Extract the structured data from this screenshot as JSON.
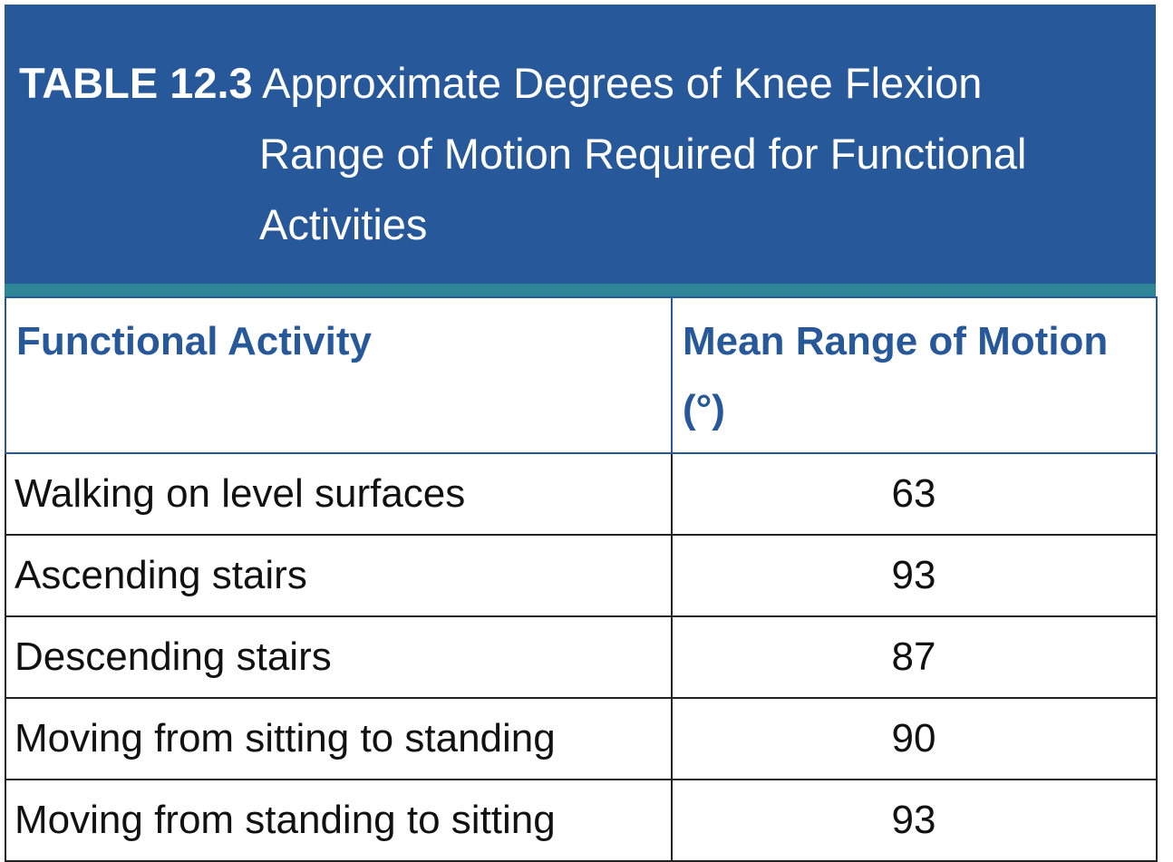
{
  "caption": {
    "label": "TABLE 12.3",
    "title_line1": "Approximate Degrees of Knee Flexion",
    "title_rest": "Range of Motion Required for Functional Activities"
  },
  "headers": {
    "activity": "Functional Activity",
    "range": "Mean Range of Motion (°)"
  },
  "rows": [
    {
      "activity": "Walking on level surfaces",
      "value": "63"
    },
    {
      "activity": "Ascending stairs",
      "value": "93"
    },
    {
      "activity": "Descending stairs",
      "value": "87"
    },
    {
      "activity": "Moving from sitting to standing",
      "value": "90"
    },
    {
      "activity": "Moving from standing to sitting",
      "value": "93"
    }
  ],
  "colors": {
    "caption_bg": "#27589a",
    "accent_bar": "#2d8595",
    "header_text": "#27589a"
  }
}
